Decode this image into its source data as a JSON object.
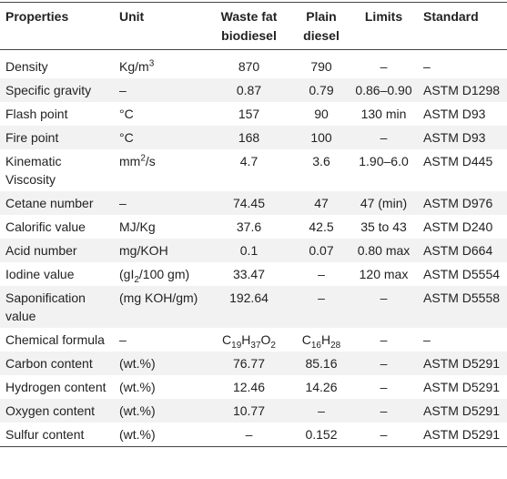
{
  "table": {
    "header": [
      "Properties",
      "Unit",
      "Waste fat biodiesel",
      "Plain diesel",
      "Limits",
      "Standard"
    ],
    "rows": [
      [
        "Density",
        [
          {
            "text": "Kg/m"
          },
          {
            "text": "3",
            "sup": true
          }
        ],
        "870",
        "790",
        "–",
        "–"
      ],
      [
        "Specific gravity",
        "–",
        "0.87",
        "0.79",
        "0.86–0.90",
        "ASTM D1298"
      ],
      [
        "Flash point",
        "°C",
        "157",
        "90",
        "130 min",
        "ASTM D93"
      ],
      [
        "Fire point",
        "°C",
        "168",
        "100",
        "–",
        "ASTM D93"
      ],
      [
        "Kinematic Viscosity",
        [
          {
            "text": "mm"
          },
          {
            "text": "2",
            "sup": true
          },
          {
            "text": "/s"
          }
        ],
        "4.7",
        "3.6",
        "1.90–6.0",
        "ASTM D445"
      ],
      [
        "Cetane number",
        "–",
        "74.45",
        "47",
        "47 (min)",
        "ASTM D976"
      ],
      [
        "Calorific value",
        "MJ/Kg",
        "37.6",
        "42.5",
        "35 to 43",
        "ASTM D240"
      ],
      [
        "Acid number",
        "mg/KOH",
        "0.1",
        "0.07",
        "0.80 max",
        "ASTM D664"
      ],
      [
        "Iodine value",
        [
          {
            "text": "(gI"
          },
          {
            "text": "2",
            "sub": true
          },
          {
            "text": "/100 gm)"
          }
        ],
        "33.47",
        "–",
        "120 max",
        "ASTM D5554"
      ],
      [
        "Saponification value",
        "(mg KOH/gm)",
        "192.64",
        "–",
        "–",
        "ASTM D5558"
      ],
      [
        "Chemical formula",
        "–",
        [
          {
            "text": "C"
          },
          {
            "text": "19",
            "sub": true
          },
          {
            "text": "H"
          },
          {
            "text": "37",
            "sub": true
          },
          {
            "text": "O"
          },
          {
            "text": "2",
            "sub": true
          }
        ],
        [
          {
            "text": "C"
          },
          {
            "text": "16",
            "sub": true
          },
          {
            "text": "H"
          },
          {
            "text": "28",
            "sub": true
          }
        ],
        "–",
        "–"
      ],
      [
        "Carbon content",
        "(wt.%)",
        "76.77",
        "85.16",
        "–",
        "ASTM D5291"
      ],
      [
        "Hydrogen content",
        "(wt.%)",
        "12.46",
        "14.26",
        "–",
        "ASTM D5291"
      ],
      [
        "Oxygen content",
        "(wt.%)",
        "10.77",
        "–",
        "–",
        "ASTM D5291"
      ],
      [
        "Sulfur content",
        "(wt.%)",
        "–",
        "0.152",
        "–",
        "ASTM D5291"
      ]
    ]
  }
}
